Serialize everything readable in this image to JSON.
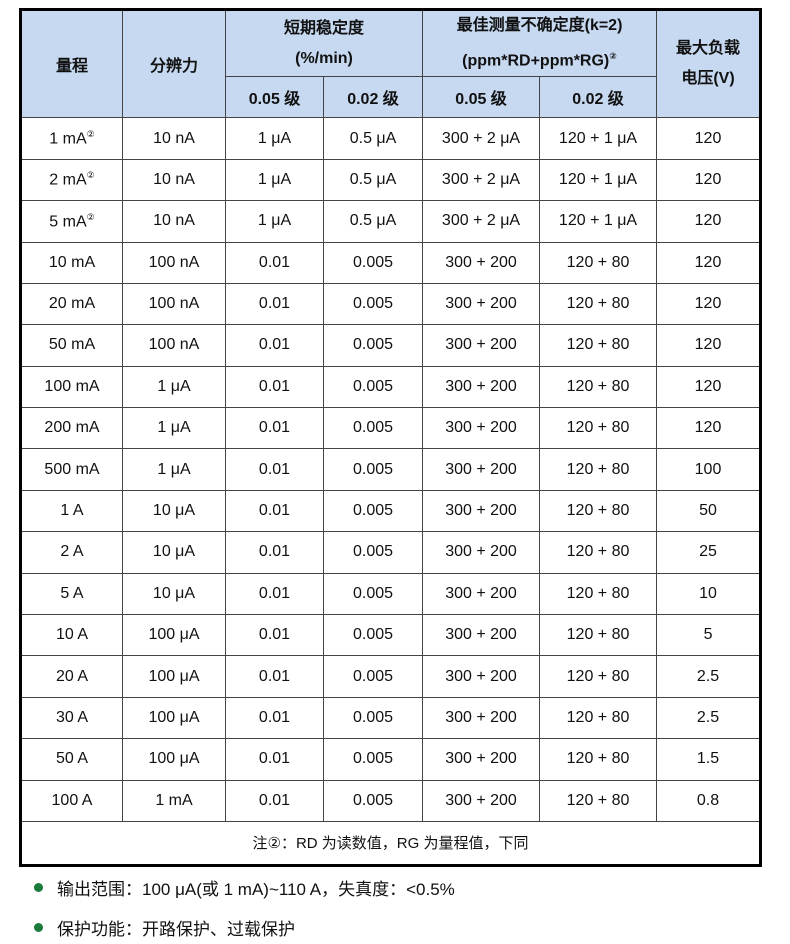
{
  "header": {
    "range": "量程",
    "resolution": "分辨力",
    "stability": "短期稳定度",
    "stability_unit": "(%/min)",
    "uncertainty": "最佳测量不确定度(k=2)",
    "uncertainty_unit": "(ppm*RD+ppm*RG)",
    "uncertainty_mark": "②",
    "max_voltage": "最大负载",
    "max_voltage2": "电压(V)",
    "grade1": "0.05 级",
    "grade2": "0.02 级",
    "grade3": "0.05 级",
    "grade4": "0.02 级"
  },
  "rows": [
    [
      "1 mA",
      "10 nA",
      "1 μA",
      "0.5 μA",
      "300 + 2 μA",
      "120 + 1 μA",
      "120"
    ],
    [
      "2 mA",
      "10 nA",
      "1 μA",
      "0.5 μA",
      "300 + 2 μA",
      "120 + 1 μA",
      "120"
    ],
    [
      "5 mA",
      "10 nA",
      "1 μA",
      "0.5 μA",
      "300 + 2 μA",
      "120 + 1 μA",
      "120"
    ],
    [
      "10 mA",
      "100 nA",
      "0.01",
      "0.005",
      "300 + 200",
      "120 + 80",
      "120"
    ],
    [
      "20 mA",
      "100 nA",
      "0.01",
      "0.005",
      "300 + 200",
      "120 + 80",
      "120"
    ],
    [
      "50 mA",
      "100 nA",
      "0.01",
      "0.005",
      "300 + 200",
      "120 + 80",
      "120"
    ],
    [
      "100 mA",
      "1 μA",
      "0.01",
      "0.005",
      "300 + 200",
      "120 + 80",
      "120"
    ],
    [
      "200 mA",
      "1 μA",
      "0.01",
      "0.005",
      "300 + 200",
      "120 + 80",
      "120"
    ],
    [
      "500 mA",
      "1 μA",
      "0.01",
      "0.005",
      "300 + 200",
      "120 + 80",
      "100"
    ],
    [
      "1 A",
      "10 μA",
      "0.01",
      "0.005",
      "300 + 200",
      "120 + 80",
      "50"
    ],
    [
      "2 A",
      "10 μA",
      "0.01",
      "0.005",
      "300 + 200",
      "120 + 80",
      "25"
    ],
    [
      "5 A",
      "10 μA",
      "0.01",
      "0.005",
      "300 + 200",
      "120 + 80",
      "10"
    ],
    [
      "10 A",
      "100 μA",
      "0.01",
      "0.005",
      "300 + 200",
      "120 + 80",
      "5"
    ],
    [
      "20 A",
      "100 μA",
      "0.01",
      "0.005",
      "300 + 200",
      "120 + 80",
      "2.5"
    ],
    [
      "30 A",
      "100 μA",
      "0.01",
      "0.005",
      "300 + 200",
      "120 + 80",
      "2.5"
    ],
    [
      "50 A",
      "100 μA",
      "0.01",
      "0.005",
      "300 + 200",
      "120 + 80",
      "1.5"
    ],
    [
      "100 A",
      "1 mA",
      "0.01",
      "0.005",
      "300 + 200",
      "120 + 80",
      "0.8"
    ]
  ],
  "row_marks": [
    "②",
    "②",
    "②"
  ],
  "note": "注②：RD 为读数值，RG 为量程值，下同",
  "bullets": [
    "输出范围：100 μA(或 1 mA)~110 A，失真度：<0.5%",
    "保护功能：开路保护、过载保护"
  ],
  "colors": {
    "header_bg": "#c6d9f1",
    "bullet": "#1a7a3a"
  }
}
